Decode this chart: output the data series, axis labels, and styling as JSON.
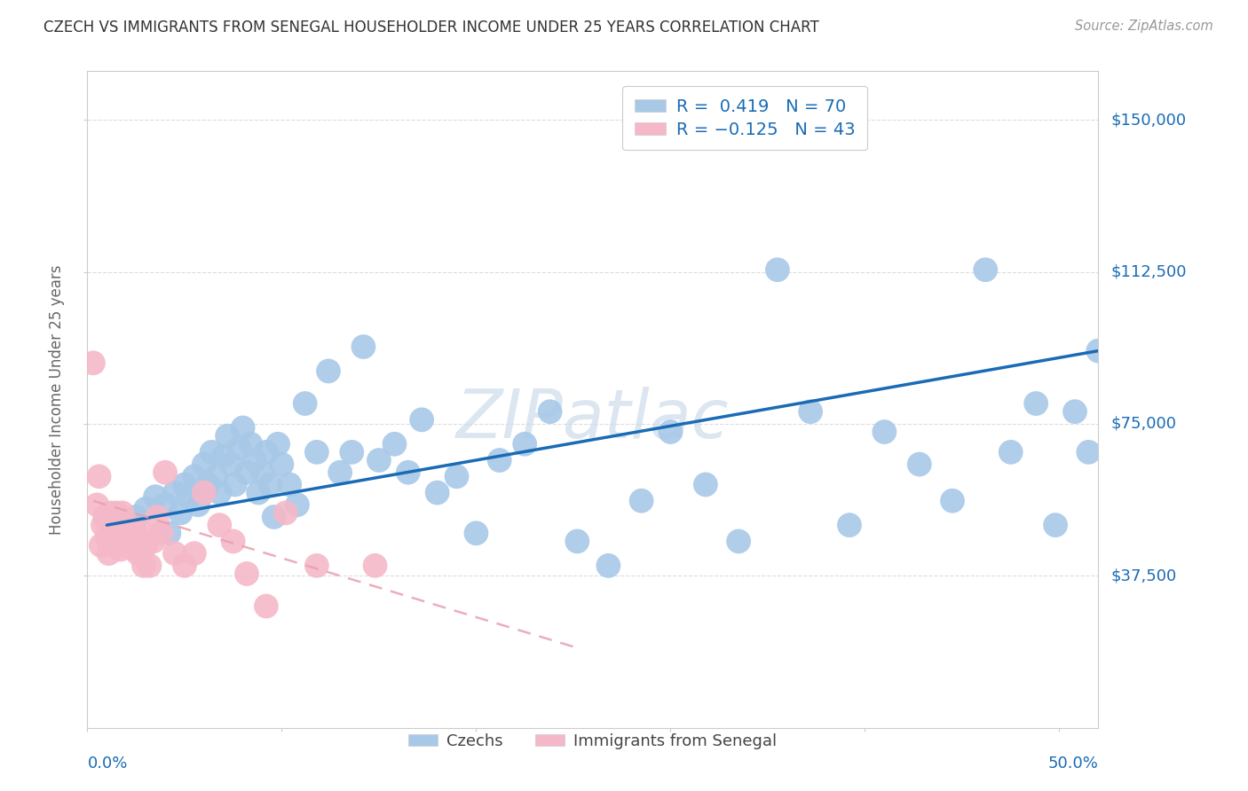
{
  "title": "CZECH VS IMMIGRANTS FROM SENEGAL HOUSEHOLDER INCOME UNDER 25 YEARS CORRELATION CHART",
  "source": "Source: ZipAtlas.com",
  "ylabel": "Householder Income Under 25 years",
  "ytick_labels": [
    "$37,500",
    "$75,000",
    "$112,500",
    "$150,000"
  ],
  "ytick_values": [
    37500,
    75000,
    112500,
    150000
  ],
  "ylim": [
    0,
    162000
  ],
  "xlim": [
    0.0,
    0.52
  ],
  "legend_czech_R": "R =  0.419",
  "legend_czech_N": "N = 70",
  "legend_senegal_R": "R = -0.125",
  "legend_senegal_N": "N = 43",
  "czech_color": "#a8c8e8",
  "senegal_color": "#f5b8c8",
  "czech_line_color": "#1a6bb5",
  "senegal_line_color": "#e8a0b0",
  "title_color": "#333333",
  "axis_color": "#cccccc",
  "grid_color": "#dddddd",
  "source_color": "#999999",
  "ylabel_color": "#666666",
  "ytick_color": "#1a6bb5",
  "xtick_color": "#1a6bb5",
  "watermark_color": "#ccdcec",
  "czech_x": [
    0.02,
    0.025,
    0.03,
    0.035,
    0.04,
    0.042,
    0.045,
    0.048,
    0.05,
    0.052,
    0.055,
    0.057,
    0.06,
    0.062,
    0.064,
    0.066,
    0.068,
    0.07,
    0.072,
    0.074,
    0.076,
    0.078,
    0.08,
    0.082,
    0.084,
    0.086,
    0.088,
    0.09,
    0.092,
    0.094,
    0.096,
    0.098,
    0.1,
    0.104,
    0.108,
    0.112,
    0.118,
    0.124,
    0.13,
    0.136,
    0.142,
    0.15,
    0.158,
    0.165,
    0.172,
    0.18,
    0.19,
    0.2,
    0.212,
    0.225,
    0.238,
    0.252,
    0.268,
    0.285,
    0.3,
    0.318,
    0.335,
    0.355,
    0.372,
    0.392,
    0.41,
    0.428,
    0.445,
    0.462,
    0.475,
    0.488,
    0.498,
    0.508,
    0.515,
    0.52
  ],
  "czech_y": [
    50000,
    52000,
    54000,
    57000,
    55000,
    48000,
    58000,
    53000,
    60000,
    57000,
    62000,
    55000,
    65000,
    60000,
    68000,
    62000,
    58000,
    67000,
    72000,
    65000,
    60000,
    69000,
    74000,
    63000,
    70000,
    66000,
    58000,
    63000,
    68000,
    60000,
    52000,
    70000,
    65000,
    60000,
    55000,
    80000,
    68000,
    88000,
    63000,
    68000,
    94000,
    66000,
    70000,
    63000,
    76000,
    58000,
    62000,
    48000,
    66000,
    70000,
    78000,
    46000,
    40000,
    56000,
    73000,
    60000,
    46000,
    113000,
    78000,
    50000,
    73000,
    65000,
    56000,
    113000,
    68000,
    80000,
    50000,
    78000,
    68000,
    93000
  ],
  "senegal_x": [
    0.003,
    0.005,
    0.006,
    0.007,
    0.008,
    0.009,
    0.01,
    0.011,
    0.012,
    0.013,
    0.014,
    0.015,
    0.016,
    0.017,
    0.018,
    0.019,
    0.02,
    0.021,
    0.022,
    0.023,
    0.024,
    0.025,
    0.026,
    0.027,
    0.028,
    0.029,
    0.03,
    0.032,
    0.034,
    0.036,
    0.038,
    0.04,
    0.045,
    0.05,
    0.055,
    0.06,
    0.068,
    0.075,
    0.082,
    0.092,
    0.102,
    0.118,
    0.148
  ],
  "senegal_y": [
    90000,
    55000,
    62000,
    45000,
    50000,
    52000,
    47000,
    43000,
    53000,
    49000,
    45000,
    53000,
    48000,
    44000,
    53000,
    50000,
    45000,
    50000,
    46000,
    48000,
    44000,
    48000,
    43000,
    44000,
    48000,
    40000,
    45000,
    40000,
    46000,
    52000,
    48000,
    63000,
    43000,
    40000,
    43000,
    58000,
    50000,
    46000,
    38000,
    30000,
    53000,
    40000,
    40000
  ],
  "czech_line_x0": 0.01,
  "czech_line_x1": 0.52,
  "czech_line_y0": 50000,
  "czech_line_y1": 93000,
  "senegal_line_x0": 0.003,
  "senegal_line_x1": 0.25,
  "senegal_line_y0": 56000,
  "senegal_line_y1": 20000
}
